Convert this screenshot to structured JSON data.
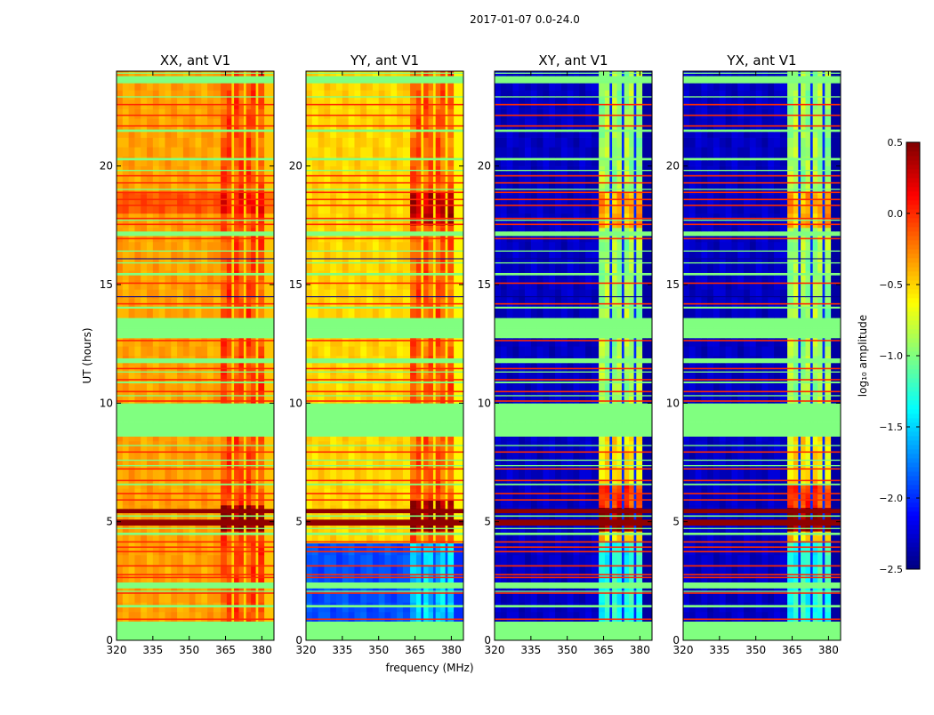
{
  "chart_data": {
    "type": "heatmap",
    "title": "2017-01-07 0.0-24.0",
    "xlabel": "frequency (MHz)",
    "ylabel": "UT (hours)",
    "xlim": [
      320,
      385
    ],
    "ylim": [
      0,
      24
    ],
    "xticks": [
      320,
      335,
      350,
      365,
      380
    ],
    "yticks": [
      0,
      5,
      10,
      15,
      20
    ],
    "colorbar": {
      "label": "log₁₀ amplitude",
      "colormap": "jet",
      "range": [
        -2.5,
        0.5
      ],
      "ticks": [
        0.5,
        0.0,
        -0.5,
        -1.0,
        -1.5,
        -2.0,
        -2.5
      ],
      "tick_labels": [
        "0.5",
        "0.0",
        "−0.5",
        "−1.0",
        "−1.5",
        "−2.0",
        "−2.5"
      ]
    },
    "band_columns_mhz": [
      320,
      322.5,
      325,
      327.5,
      330,
      332.5,
      335,
      337.5,
      340,
      342.5,
      345,
      347.5,
      350,
      352.5,
      355,
      357.5,
      360,
      363,
      365.5,
      367.5,
      368.5,
      370.5,
      372.5,
      373.5,
      375.5,
      377.5,
      378.5,
      381,
      383,
      385
    ],
    "rfi_band_mhz": [
      363,
      381
    ],
    "rfi_gaps_mhz": [
      [
        367.5,
        368.5
      ],
      [
        372.5,
        373.5
      ],
      [
        377.5,
        378.5
      ]
    ],
    "shared_time_events": {
      "flagged_ranges_h": [
        [
          0,
          0.8
        ],
        [
          1.4,
          1.5
        ],
        [
          2.05,
          2.1
        ],
        [
          2.2,
          2.45
        ],
        [
          4.45,
          4.55
        ],
        [
          4.7,
          4.75
        ],
        [
          5.22,
          5.28
        ],
        [
          6.55,
          6.62
        ],
        [
          7.35,
          7.4
        ],
        [
          7.58,
          7.63
        ],
        [
          8.2,
          8.25
        ],
        [
          8.6,
          10.0
        ],
        [
          10.3,
          10.35
        ],
        [
          10.85,
          10.92
        ],
        [
          11.3,
          11.35
        ],
        [
          11.7,
          11.9
        ],
        [
          12.75,
          13.6
        ],
        [
          14.0,
          14.08
        ],
        [
          15.4,
          15.5
        ],
        [
          15.9,
          15.95
        ],
        [
          16.4,
          16.45
        ],
        [
          17.06,
          17.25
        ],
        [
          17.7,
          17.75
        ],
        [
          19.0,
          19.05
        ],
        [
          19.8,
          19.85
        ],
        [
          20.25,
          20.35
        ],
        [
          21.45,
          21.55
        ],
        [
          22.9,
          22.95
        ],
        [
          23.5,
          23.8
        ],
        [
          23.9,
          23.95
        ]
      ],
      "rfi_lines_h": [
        0.9,
        2.0,
        2.66,
        2.78,
        3.15,
        3.75,
        3.94,
        4.16,
        5.93,
        6.2,
        6.75,
        7.24,
        7.95,
        10.1,
        10.5,
        11.0,
        11.47,
        12.65,
        13.15,
        14.2,
        15.07,
        16.95,
        17.55,
        17.8,
        18.35,
        18.6,
        18.9,
        19.3,
        19.6,
        21.7,
        22.15,
        22.6
      ],
      "strong_ranges_h": [
        [
          4.85,
          5.1
        ],
        [
          5.37,
          5.55
        ]
      ],
      "dropout_lines_h": [
        14.5,
        16.1
      ]
    },
    "panels": [
      {
        "title": "XX, ant V1",
        "base": -0.35,
        "band": -0.1,
        "gap": -0.5,
        "blocks": [
          {
            "t": [
              4.6,
              5.7
            ],
            "band": 0.45
          },
          {
            "t": [
              18.0,
              18.9
            ],
            "base": -0.12,
            "band": 0.1
          }
        ]
      },
      {
        "title": "YY, ant V1",
        "base": -0.5,
        "band": -0.15,
        "gap": -0.55,
        "blocks": [
          {
            "t": [
              0.8,
              4.1
            ],
            "base": -1.9,
            "band": -1.5,
            "gap": -1.9
          },
          {
            "t": [
              4.6,
              5.9
            ],
            "band": 0.45
          },
          {
            "t": [
              17.5,
              18.9
            ],
            "band": 0.3
          }
        ]
      },
      {
        "title": "XY, ant V1",
        "base": -2.3,
        "band": -0.9,
        "gap": -2.0,
        "blocks": [
          {
            "t": [
              0.8,
              4.2
            ],
            "band": -1.3
          },
          {
            "t": [
              4.2,
              4.6
            ],
            "band": -0.5
          },
          {
            "t": [
              4.6,
              5.6
            ],
            "band": 0.45
          },
          {
            "t": [
              5.6,
              6.6
            ],
            "band": -0.05
          },
          {
            "t": [
              6.6,
              8.6
            ],
            "band": -0.55
          },
          {
            "t": [
              17.4,
              18.9
            ],
            "band": -0.4
          }
        ]
      },
      {
        "title": "YX, ant V1",
        "base": -2.3,
        "band": -0.9,
        "gap": -2.0,
        "blocks": [
          {
            "t": [
              0.8,
              4.2
            ],
            "band": -1.3
          },
          {
            "t": [
              4.2,
              4.6
            ],
            "band": -0.5
          },
          {
            "t": [
              4.6,
              5.6
            ],
            "band": 0.45
          },
          {
            "t": [
              5.6,
              6.6
            ],
            "band": -0.05
          },
          {
            "t": [
              6.6,
              8.6
            ],
            "band": -0.55
          },
          {
            "t": [
              17.4,
              18.9
            ],
            "band": -0.4
          }
        ]
      }
    ]
  }
}
